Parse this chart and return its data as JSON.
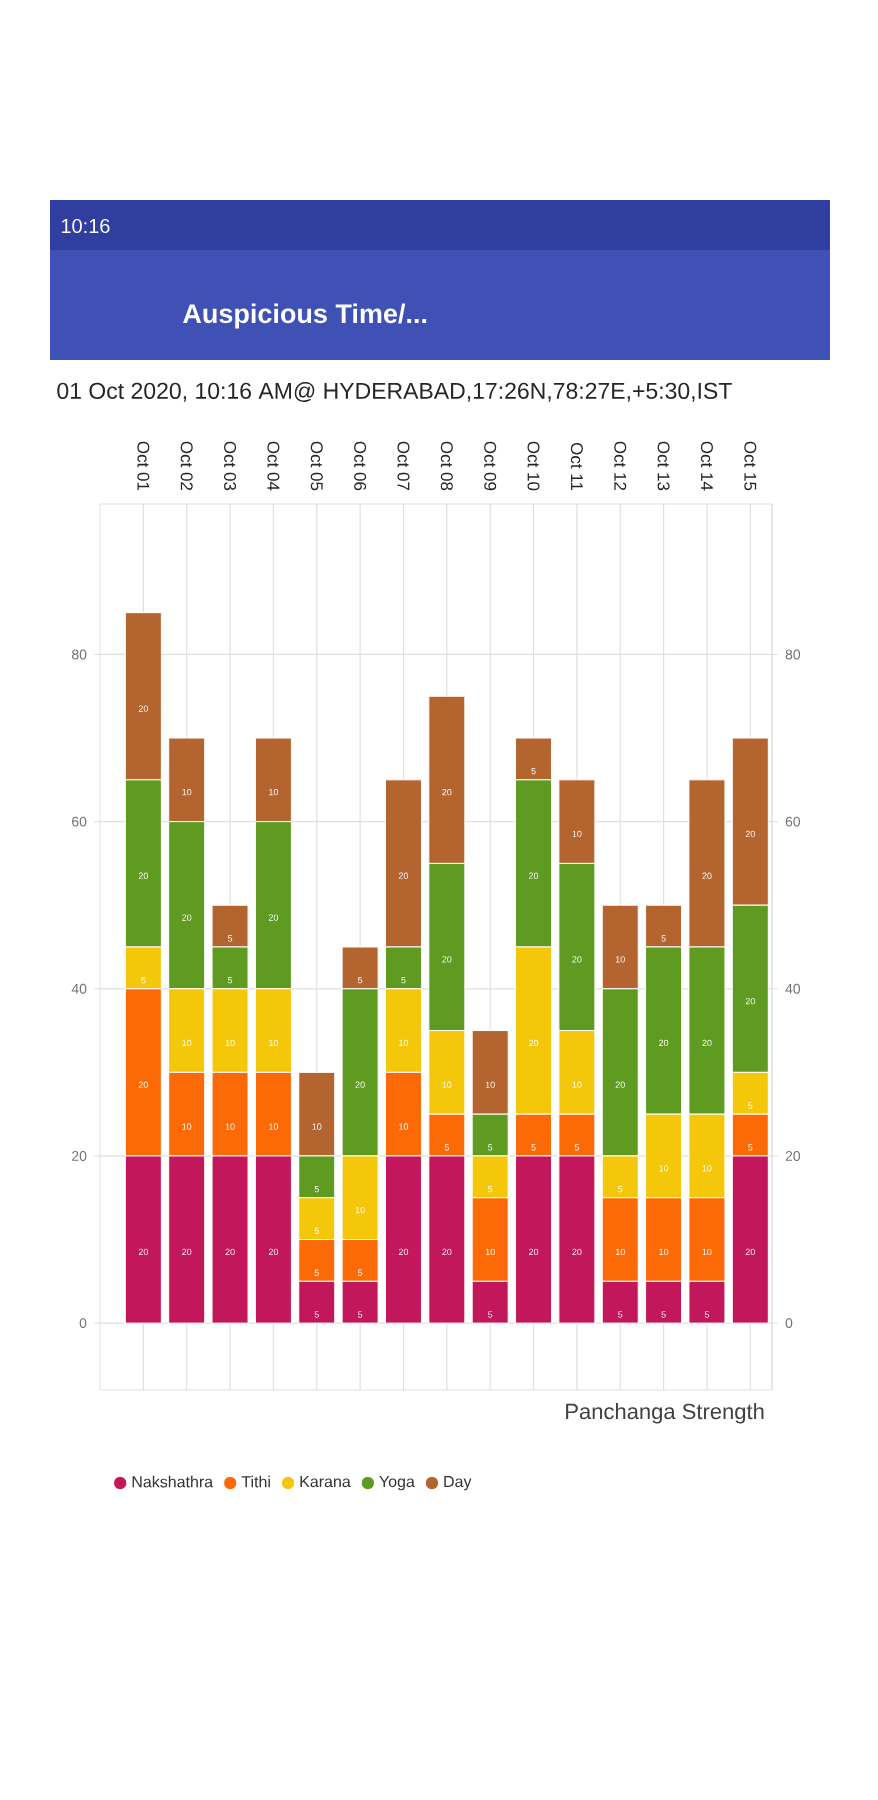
{
  "chart_data": {
    "type": "bar",
    "title": "Auspicious Time/...",
    "subtitle": "01 Oct 2020, 10:16 AM@ HYDERABAD,17:26N,78:27E,+5:30,IST",
    "xlabel": "Panchanga Strength",
    "annotations": [
      "10:16"
    ],
    "categories": [
      "Oct 01",
      "Oct 02",
      "Oct 03",
      "Oct 04",
      "Oct 05",
      "Oct 06",
      "Oct 07",
      "Oct 08",
      "Oct 09",
      "Oct 10",
      "Oct 11",
      "Oct 12",
      "Oct 13",
      "Oct 14",
      "Oct 15"
    ],
    "series": [
      {
        "name": "Nakshathra",
        "color": "#c2185b",
        "values": [
          20,
          20,
          20,
          20,
          5,
          5,
          20,
          20,
          5,
          20,
          20,
          5,
          5,
          5,
          20
        ]
      },
      {
        "name": "Tithi",
        "color": "#fc6a08",
        "values": [
          20,
          10,
          10,
          10,
          5,
          5,
          10,
          5,
          10,
          5,
          5,
          10,
          10,
          10,
          5
        ]
      },
      {
        "name": "Karana",
        "color": "#f5c70a",
        "values": [
          5,
          10,
          10,
          10,
          5,
          10,
          10,
          10,
          5,
          20,
          10,
          5,
          10,
          10,
          5
        ]
      },
      {
        "name": "Yoga",
        "color": "#5f9b21",
        "values": [
          20,
          20,
          5,
          20,
          5,
          20,
          5,
          20,
          5,
          20,
          20,
          20,
          20,
          20,
          20
        ]
      },
      {
        "name": "Day",
        "color": "#b4652f",
        "values": [
          20,
          10,
          5,
          10,
          10,
          5,
          20,
          20,
          10,
          5,
          10,
          10,
          5,
          20,
          20
        ]
      }
    ],
    "stacked": true,
    "data_labels": true,
    "grid": true,
    "legend": "bottom",
    "ylim": [
      -8,
      98
    ],
    "yticks": [
      0,
      20,
      40,
      60,
      80
    ],
    "y2lim": [
      -8,
      98
    ],
    "y2ticks": [
      0,
      20,
      40,
      60,
      80
    ]
  }
}
